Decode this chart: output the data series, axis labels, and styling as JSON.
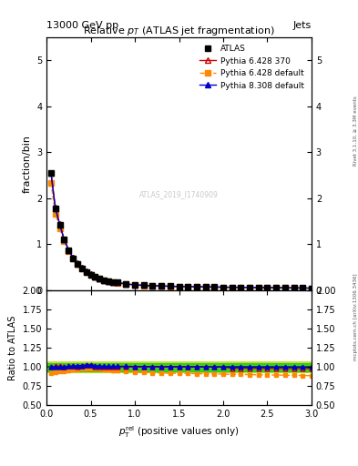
{
  "title": "Relative $p_{T}$ (ATLAS jet fragmentation)",
  "header_left": "13000 GeV pp",
  "header_right": "Jets",
  "ylabel_main": "fraction/bin",
  "ylabel_ratio": "Ratio to ATLAS",
  "xlim": [
    0,
    3
  ],
  "ylim_main": [
    0,
    5.5
  ],
  "ylim_ratio": [
    0.5,
    2.0
  ],
  "watermark": "ATLAS_2019_I1740909",
  "right_label": "mcplots.cern.ch [arXiv:1306.3436]",
  "right_label2": "Rivet 3.1.10, ≥ 3.3M events",
  "x_data": [
    0.05,
    0.1,
    0.15,
    0.2,
    0.25,
    0.3,
    0.35,
    0.4,
    0.45,
    0.5,
    0.55,
    0.6,
    0.65,
    0.7,
    0.75,
    0.8,
    0.9,
    1.0,
    1.1,
    1.2,
    1.3,
    1.4,
    1.5,
    1.6,
    1.7,
    1.8,
    1.9,
    2.0,
    2.1,
    2.2,
    2.3,
    2.4,
    2.5,
    2.6,
    2.7,
    2.8,
    2.9,
    3.0
  ],
  "atlas_y": [
    2.55,
    1.78,
    1.42,
    1.1,
    0.87,
    0.7,
    0.58,
    0.48,
    0.4,
    0.34,
    0.29,
    0.25,
    0.22,
    0.2,
    0.18,
    0.17,
    0.14,
    0.12,
    0.11,
    0.1,
    0.095,
    0.09,
    0.085,
    0.082,
    0.079,
    0.076,
    0.073,
    0.07,
    0.068,
    0.066,
    0.064,
    0.062,
    0.06,
    0.058,
    0.056,
    0.054,
    0.052,
    0.05
  ],
  "atlas_yerr": [
    0.03,
    0.02,
    0.015,
    0.012,
    0.01,
    0.009,
    0.008,
    0.007,
    0.006,
    0.005,
    0.005,
    0.004,
    0.004,
    0.003,
    0.003,
    0.003,
    0.003,
    0.002,
    0.002,
    0.002,
    0.002,
    0.002,
    0.002,
    0.002,
    0.002,
    0.002,
    0.002,
    0.001,
    0.001,
    0.001,
    0.001,
    0.001,
    0.001,
    0.001,
    0.001,
    0.001,
    0.001,
    0.001
  ],
  "pythia6_370_y": [
    2.56,
    1.8,
    1.44,
    1.11,
    0.88,
    0.71,
    0.58,
    0.49,
    0.41,
    0.35,
    0.29,
    0.25,
    0.22,
    0.2,
    0.18,
    0.17,
    0.14,
    0.12,
    0.11,
    0.1,
    0.095,
    0.09,
    0.085,
    0.082,
    0.079,
    0.076,
    0.073,
    0.07,
    0.067,
    0.065,
    0.063,
    0.061,
    0.059,
    0.057,
    0.055,
    0.053,
    0.051,
    0.049
  ],
  "pythia6_def_y": [
    2.34,
    1.67,
    1.35,
    1.06,
    0.85,
    0.69,
    0.57,
    0.48,
    0.4,
    0.34,
    0.29,
    0.25,
    0.22,
    0.19,
    0.17,
    0.16,
    0.13,
    0.11,
    0.1,
    0.095,
    0.09,
    0.085,
    0.082,
    0.079,
    0.076,
    0.073,
    0.07,
    0.067,
    0.065,
    0.063,
    0.061,
    0.059,
    0.057,
    0.055,
    0.053,
    0.051,
    0.049,
    0.047
  ],
  "pythia8_def_y": [
    2.56,
    1.78,
    1.42,
    1.1,
    0.88,
    0.71,
    0.59,
    0.49,
    0.41,
    0.35,
    0.29,
    0.25,
    0.22,
    0.2,
    0.18,
    0.17,
    0.14,
    0.12,
    0.11,
    0.1,
    0.095,
    0.09,
    0.085,
    0.082,
    0.079,
    0.076,
    0.073,
    0.07,
    0.068,
    0.066,
    0.064,
    0.062,
    0.06,
    0.058,
    0.056,
    0.054,
    0.052,
    0.05
  ],
  "ratio_6_370": [
    1.004,
    1.011,
    1.014,
    1.009,
    1.011,
    1.014,
    1.0,
    1.021,
    1.025,
    1.029,
    1.0,
    1.0,
    1.0,
    1.0,
    1.0,
    1.0,
    1.0,
    1.0,
    1.0,
    1.0,
    1.0,
    1.0,
    1.0,
    1.0,
    1.0,
    1.0,
    1.0,
    1.0,
    0.985,
    0.985,
    0.984,
    0.984,
    0.983,
    0.983,
    0.982,
    0.981,
    0.981,
    0.98
  ],
  "ratio_6_def": [
    0.918,
    0.93,
    0.94,
    0.95,
    0.96,
    0.968,
    0.972,
    0.978,
    0.98,
    0.982,
    0.98,
    0.975,
    0.97,
    0.965,
    0.96,
    0.955,
    0.945,
    0.935,
    0.93,
    0.925,
    0.922,
    0.92,
    0.918,
    0.916,
    0.914,
    0.912,
    0.91,
    0.908,
    0.906,
    0.904,
    0.902,
    0.9,
    0.898,
    0.896,
    0.894,
    0.892,
    0.89,
    0.888
  ],
  "ratio_8_def": [
    1.004,
    1.0,
    1.0,
    1.0,
    1.011,
    1.014,
    1.017,
    1.021,
    1.025,
    1.029,
    1.02,
    1.015,
    1.012,
    1.01,
    1.01,
    1.01,
    1.01,
    1.008,
    1.007,
    1.006,
    1.005,
    1.004,
    1.004,
    1.003,
    1.003,
    1.002,
    1.002,
    1.001,
    1.001,
    1.001,
    1.0,
    1.0,
    1.0,
    1.0,
    0.999,
    0.999,
    0.998,
    0.998
  ],
  "atlas_band_inner": [
    0.95,
    1.05
  ],
  "atlas_band_outer": [
    0.93,
    1.07
  ],
  "color_atlas": "#000000",
  "color_p6_370": "#cc0000",
  "color_p6_def": "#ff8800",
  "color_p8_def": "#0000cc",
  "color_band_green": "#00cc00",
  "color_band_yellow": "#cccc00"
}
